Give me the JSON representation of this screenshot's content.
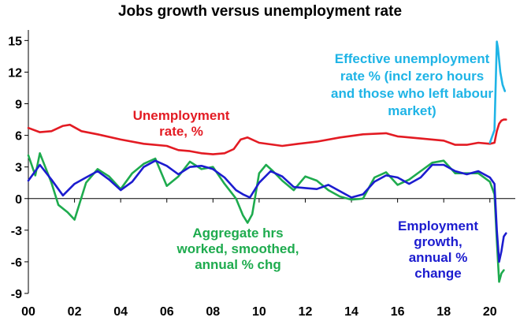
{
  "chart_data": {
    "type": "line",
    "title": "Jobs growth versus unemployment rate",
    "xlabel": "",
    "ylabel": "",
    "xlim": [
      2000.0,
      2021.1
    ],
    "ylim": [
      -9,
      16
    ],
    "x_ticks": [
      2000,
      2002,
      2004,
      2006,
      2008,
      2010,
      2012,
      2014,
      2016,
      2018,
      2020
    ],
    "x_tick_labels": [
      "00",
      "02",
      "04",
      "06",
      "08",
      "10",
      "12",
      "14",
      "16",
      "18",
      "20"
    ],
    "y_ticks": [
      15,
      12,
      9,
      6,
      3,
      0,
      -3,
      -6,
      -9
    ],
    "y_tick_labels": [
      "15",
      "12",
      "9",
      "6",
      "3",
      "0",
      "-3",
      "-6",
      "-9"
    ],
    "grid": false,
    "legend": "none",
    "series": [
      {
        "name": "Unemployment rate, %",
        "color": "#e31b23",
        "x": [
          2000.0,
          2000.5,
          2001.0,
          2001.5,
          2001.8,
          2002.3,
          2003.0,
          2004.0,
          2005.0,
          2006.0,
          2006.5,
          2007.0,
          2007.5,
          2008.0,
          2008.5,
          2008.9,
          2009.2,
          2009.5,
          2010.0,
          2011.0,
          2011.7,
          2012.5,
          2013.5,
          2014.5,
          2015.5,
          2016.0,
          2017.0,
          2017.5,
          2018.0,
          2018.5,
          2019.0,
          2019.5,
          2020.0,
          2020.2,
          2020.3,
          2020.4,
          2020.5,
          2020.6,
          2020.7
        ],
        "values": [
          6.7,
          6.3,
          6.4,
          6.9,
          7.0,
          6.4,
          6.1,
          5.6,
          5.2,
          5.0,
          4.6,
          4.5,
          4.3,
          4.2,
          4.3,
          4.7,
          5.6,
          5.8,
          5.3,
          5.0,
          5.2,
          5.4,
          5.8,
          6.1,
          6.2,
          5.9,
          5.7,
          5.6,
          5.5,
          5.1,
          5.1,
          5.3,
          5.2,
          5.3,
          6.4,
          7.1,
          7.4,
          7.5,
          7.5
        ]
      },
      {
        "name": "Effective unemployment rate % (incl zero hours and those who left labour market)",
        "color": "#1fb4e6",
        "x": [
          2020.0,
          2020.2,
          2020.3,
          2020.35,
          2020.45,
          2020.55,
          2020.65
        ],
        "values": [
          5.3,
          6.5,
          14.9,
          14.3,
          12.0,
          10.8,
          10.2
        ]
      },
      {
        "name": "Employment growth, annual % change",
        "color": "#1c1ccf",
        "x": [
          2000.0,
          2000.5,
          2001.0,
          2001.5,
          2002.0,
          2002.5,
          2003.0,
          2003.5,
          2004.0,
          2004.5,
          2005.0,
          2005.5,
          2006.0,
          2006.5,
          2007.0,
          2007.5,
          2008.0,
          2008.5,
          2009.0,
          2009.3,
          2009.6,
          2010.0,
          2010.5,
          2011.0,
          2011.5,
          2012.0,
          2012.5,
          2013.0,
          2013.5,
          2014.0,
          2014.5,
          2015.0,
          2015.5,
          2016.0,
          2016.5,
          2017.0,
          2017.5,
          2018.0,
          2018.5,
          2019.0,
          2019.5,
          2020.0,
          2020.2,
          2020.3,
          2020.4,
          2020.5,
          2020.6,
          2020.7
        ],
        "values": [
          1.7,
          3.2,
          1.8,
          0.3,
          1.4,
          2.0,
          2.6,
          1.8,
          0.8,
          1.6,
          3.0,
          3.6,
          3.1,
          2.3,
          3.0,
          3.1,
          2.8,
          2.0,
          0.8,
          0.4,
          0.1,
          1.5,
          2.6,
          2.1,
          1.1,
          1.0,
          0.9,
          1.3,
          0.7,
          0.1,
          0.4,
          1.6,
          2.2,
          2.0,
          1.4,
          2.0,
          3.2,
          3.2,
          2.6,
          2.3,
          2.6,
          2.0,
          1.4,
          -3.0,
          -6.0,
          -5.0,
          -3.6,
          -3.3
        ]
      },
      {
        "name": "Aggregate hrs worked, smoothed, annual % chg",
        "color": "#1eab4e",
        "x": [
          2000.0,
          2000.3,
          2000.5,
          2001.0,
          2001.3,
          2001.7,
          2002.0,
          2002.5,
          2003.0,
          2003.5,
          2004.0,
          2004.5,
          2005.0,
          2005.5,
          2006.0,
          2006.5,
          2007.0,
          2007.5,
          2008.0,
          2008.5,
          2009.0,
          2009.3,
          2009.5,
          2009.7,
          2010.0,
          2010.3,
          2010.6,
          2011.0,
          2011.5,
          2012.0,
          2012.5,
          2013.0,
          2013.5,
          2014.0,
          2014.5,
          2015.0,
          2015.5,
          2016.0,
          2016.5,
          2017.0,
          2017.5,
          2018.0,
          2018.5,
          2019.0,
          2019.5,
          2020.0,
          2020.2,
          2020.3,
          2020.4,
          2020.5,
          2020.6
        ],
        "values": [
          4.1,
          2.2,
          4.3,
          1.5,
          -0.6,
          -1.3,
          -2.0,
          1.5,
          2.8,
          2.1,
          0.9,
          2.4,
          3.3,
          3.8,
          1.2,
          2.1,
          3.5,
          2.8,
          3.0,
          1.4,
          0.0,
          -1.6,
          -2.3,
          -1.5,
          2.4,
          3.2,
          2.6,
          1.7,
          0.8,
          2.1,
          1.7,
          0.8,
          0.2,
          -0.1,
          0.0,
          2.0,
          2.5,
          1.3,
          1.8,
          2.6,
          3.4,
          3.6,
          2.4,
          2.4,
          2.4,
          1.6,
          0.4,
          -4.0,
          -7.9,
          -7.1,
          -6.8
        ]
      }
    ],
    "annotations": [
      {
        "lines": [
          "Unemployment",
          "rate, %"
        ],
        "color": "#e31b23"
      },
      {
        "lines": [
          "Effective unemployment",
          "rate % (incl zero hours",
          "and those who left labour",
          "market)"
        ],
        "color": "#1fb4e6"
      },
      {
        "lines": [
          "Aggregate hrs",
          "worked, smoothed,",
          "annual % chg"
        ],
        "color": "#1eab4e"
      },
      {
        "lines": [
          "Employment",
          "growth,",
          "annual %",
          "change"
        ],
        "color": "#1c1ccf"
      }
    ]
  }
}
